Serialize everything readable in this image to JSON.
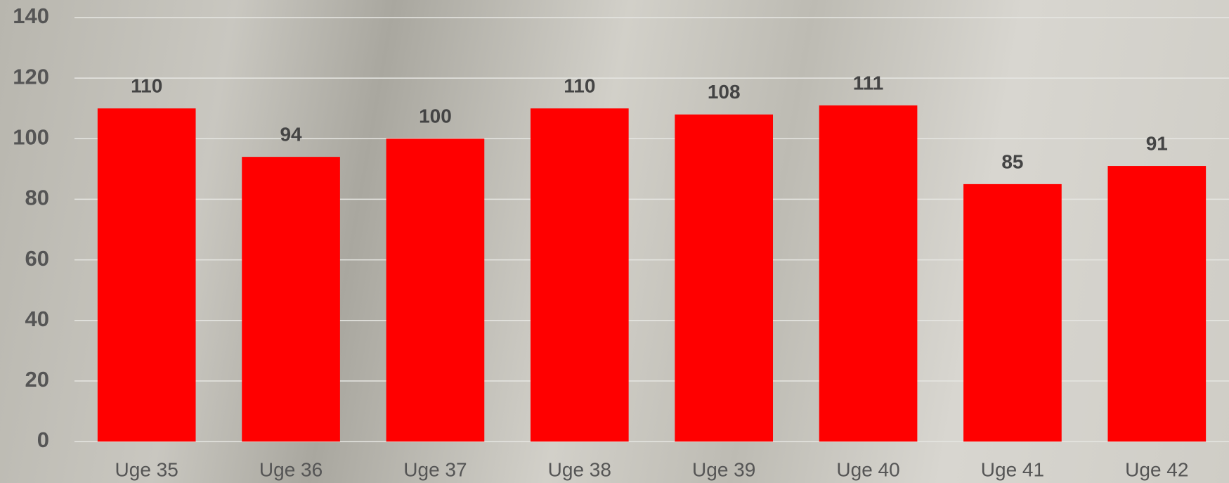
{
  "chart_data": {
    "type": "bar",
    "categories": [
      "Uge 35",
      "Uge 36",
      "Uge 37",
      "Uge 38",
      "Uge 39",
      "Uge 40",
      "Uge 41",
      "Uge 42"
    ],
    "values": [
      110,
      94,
      100,
      110,
      108,
      111,
      85,
      91
    ],
    "color": "#ff0000",
    "ylim": [
      0,
      140
    ],
    "yticks": [
      0,
      20,
      40,
      60,
      80,
      100,
      120,
      140
    ],
    "grid": true
  }
}
